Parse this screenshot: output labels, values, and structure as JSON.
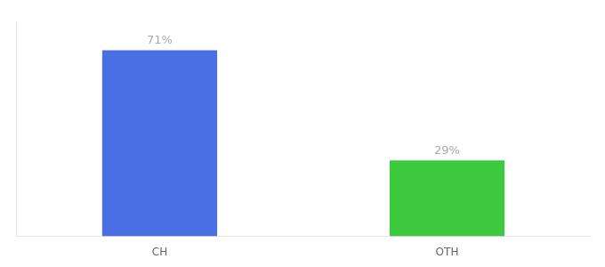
{
  "chart_data": {
    "type": "bar",
    "categories": [
      "CH",
      "OTH"
    ],
    "values": [
      71,
      29
    ],
    "colors": [
      "#4A6FE3",
      "#3DC93D"
    ],
    "value_labels": [
      "71%",
      "29%"
    ],
    "data_labels": true,
    "ylim": [
      0,
      82
    ],
    "tick_labels": "x",
    "grid": false
  }
}
